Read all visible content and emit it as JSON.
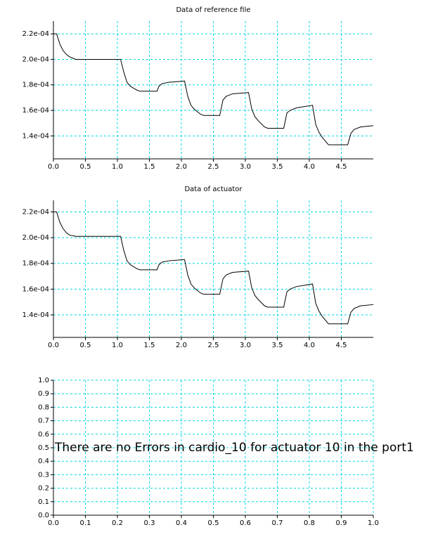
{
  "chart_data": [
    {
      "type": "line",
      "title": "Data of reference file",
      "x": [
        0,
        0.05,
        0.1,
        0.15,
        0.2,
        0.25,
        0.35,
        1.05,
        1.1,
        1.15,
        1.2,
        1.3,
        1.35,
        1.62,
        1.65,
        1.7,
        1.8,
        2.05,
        2.1,
        2.15,
        2.2,
        2.3,
        2.35,
        2.6,
        2.65,
        2.7,
        2.8,
        3.05,
        3.1,
        3.15,
        3.2,
        3.3,
        3.35,
        3.6,
        3.65,
        3.7,
        3.8,
        4.05,
        4.1,
        4.15,
        4.2,
        4.3,
        4.6,
        4.65,
        4.7,
        4.8,
        5.0
      ],
      "series": [
        {
          "color": "#000000",
          "values": [
            0.00022,
            0.00022,
            0.000212,
            0.000207,
            0.000204,
            0.000202,
            0.0002,
            0.0002,
            0.00019,
            0.000182,
            0.000179,
            0.000176,
            0.000175,
            0.000175,
            0.000179,
            0.000181,
            0.000182,
            0.000183,
            0.000171,
            0.000164,
            0.000161,
            0.000157,
            0.000156,
            0.000156,
            0.000168,
            0.000171,
            0.000173,
            0.000174,
            0.000161,
            0.000155,
            0.000152,
            0.000147,
            0.000146,
            0.000146,
            0.000158,
            0.00016,
            0.000162,
            0.000164,
            0.000149,
            0.000143,
            0.000139,
            0.000133,
            0.000133,
            0.000142,
            0.000145,
            0.000147,
            0.000148
          ]
        }
      ],
      "xlim": [
        0,
        5
      ],
      "xticks": [
        {
          "value": 0,
          "label": "0.0"
        },
        0.5,
        {
          "value": 1,
          "label": "1.0"
        },
        1.5,
        {
          "value": 2,
          "label": "2.0"
        },
        2.5,
        {
          "value": 3,
          "label": "3.0"
        },
        3.5,
        {
          "value": 4,
          "label": "4.0"
        },
        4.5
      ],
      "ylim": [
        0.000122,
        0.00023
      ],
      "yticks": [
        {
          "value": 0.00014,
          "label": "1.4e-04"
        },
        {
          "value": 0.00016,
          "label": "1.6e-04"
        },
        {
          "value": 0.00018,
          "label": "1.8e-04"
        },
        {
          "value": 0.0002,
          "label": "2.0e-04"
        },
        {
          "value": 0.00022,
          "label": "2.2e-04"
        }
      ],
      "grid": true,
      "grid_color": "#00d8e0"
    },
    {
      "type": "line",
      "title": "Data of actuator",
      "x": [
        0,
        0.05,
        0.1,
        0.15,
        0.2,
        0.25,
        0.35,
        1.05,
        1.1,
        1.15,
        1.2,
        1.3,
        1.35,
        1.62,
        1.65,
        1.7,
        1.8,
        2.05,
        2.1,
        2.15,
        2.2,
        2.3,
        2.35,
        2.6,
        2.65,
        2.7,
        2.8,
        3.05,
        3.1,
        3.15,
        3.2,
        3.3,
        3.35,
        3.6,
        3.65,
        3.7,
        3.8,
        4.05,
        4.1,
        4.15,
        4.2,
        4.3,
        4.6,
        4.65,
        4.7,
        4.8,
        5.0
      ],
      "series": [
        {
          "color": "#000000",
          "values": [
            0.00022,
            0.00022,
            0.000212,
            0.000207,
            0.000204,
            0.000202,
            0.000201,
            0.000201,
            0.00019,
            0.000182,
            0.000179,
            0.000176,
            0.000175,
            0.000175,
            0.000179,
            0.000181,
            0.000182,
            0.000183,
            0.000171,
            0.000164,
            0.000161,
            0.000157,
            0.000156,
            0.000156,
            0.000168,
            0.000171,
            0.000173,
            0.000174,
            0.000161,
            0.000155,
            0.000152,
            0.000147,
            0.000146,
            0.000146,
            0.000158,
            0.00016,
            0.000162,
            0.000164,
            0.000149,
            0.000143,
            0.000139,
            0.000133,
            0.000133,
            0.000142,
            0.000145,
            0.000147,
            0.000148
          ]
        }
      ],
      "xlim": [
        0,
        5
      ],
      "xticks": [
        {
          "value": 0,
          "label": "0.0"
        },
        0.5,
        {
          "value": 1,
          "label": "1.0"
        },
        1.5,
        {
          "value": 2,
          "label": "2.0"
        },
        2.5,
        {
          "value": 3,
          "label": "3.0"
        },
        3.5,
        {
          "value": 4,
          "label": "4.0"
        },
        4.5
      ],
      "ylim": [
        0.0001225,
        0.000229
      ],
      "yticks": [
        {
          "value": 0.00014,
          "label": "1.4e-04"
        },
        {
          "value": 0.00016,
          "label": "1.6e-04"
        },
        {
          "value": 0.00018,
          "label": "1.8e-04"
        },
        {
          "value": 0.0002,
          "label": "2.0e-04"
        },
        {
          "value": 0.00022,
          "label": "2.2e-04"
        }
      ],
      "grid": true,
      "grid_color": "#00d8e0"
    },
    {
      "type": "line",
      "annotation": "There are no Errors in cardio_10 for actuator 10 in the port1",
      "xlim": [
        0,
        1
      ],
      "xticks": [
        {
          "value": 0,
          "label": "0.0"
        },
        0.1,
        0.2,
        0.3,
        0.4,
        0.5,
        0.6,
        0.7,
        0.8,
        0.9,
        {
          "value": 1,
          "label": "1.0"
        }
      ],
      "ylim": [
        0,
        1
      ],
      "yticks": [
        {
          "value": 0,
          "label": "0.0"
        },
        0.1,
        0.2,
        0.3,
        0.4,
        0.5,
        0.6,
        0.7,
        0.8,
        0.9,
        {
          "value": 1,
          "label": "1.0"
        }
      ],
      "grid": true,
      "grid_color": "#00d8e0"
    }
  ]
}
